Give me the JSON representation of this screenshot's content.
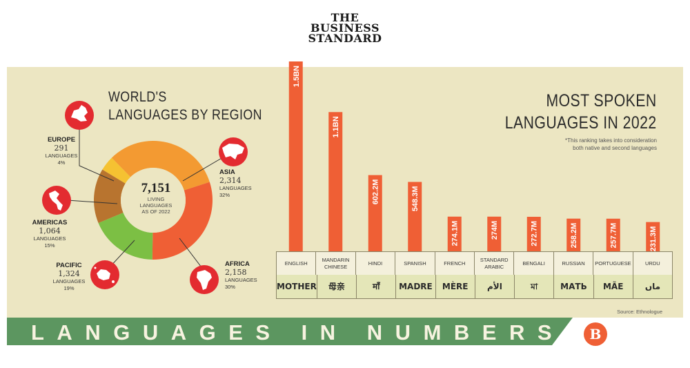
{
  "masthead": {
    "line1": "THE",
    "line2": "BUSINESS",
    "line3": "STANDARD"
  },
  "region_chart": {
    "title_line1": "WORLD'S",
    "title_line2": "LANGUAGES BY REGION",
    "center_total": "7,151",
    "center_text_1": "LIVING",
    "center_text_2": "LANGUAGES",
    "center_text_3": "AS OF 2022",
    "regions": [
      {
        "name": "EUROPE",
        "count": "291",
        "unit": "LANGUAGES",
        "pct": "4%"
      },
      {
        "name": "ASIA",
        "count": "2,314",
        "unit": "LANGUAGES",
        "pct": "32%"
      },
      {
        "name": "AMERICAS",
        "count": "1,064",
        "unit": "LANGUAGES",
        "pct": "15%"
      },
      {
        "name": "PACIFIC",
        "count": "1,324",
        "unit": "LANGUAGES",
        "pct": "19%"
      },
      {
        "name": "AFRICA",
        "count": "2,158",
        "unit": "LANGUAGES",
        "pct": "30%"
      }
    ]
  },
  "spoken": {
    "title_line1": "MOST SPOKEN",
    "title_line2": "LANGUAGES IN 2022",
    "note": "*This ranking takes into consideration both native and second languages",
    "source": "Source: Ethnologue"
  },
  "banner": "LANGUAGES IN NUMBERS",
  "logo": "B",
  "colors": {
    "europe": "#f5c232",
    "asia": "#f39a32",
    "africa": "#ef5f35",
    "pacific": "#7cbf44",
    "americas": "#b8742f",
    "bar": "#ef5f35",
    "icon": "#e32b30",
    "banner": "#5c9660",
    "panel": "#ece6c2"
  },
  "chart_data": [
    {
      "type": "pie",
      "title": "WORLD'S LANGUAGES BY REGION",
      "slices": [
        {
          "label": "EUROPE",
          "value": 291,
          "pct": 4
        },
        {
          "label": "ASIA",
          "value": 2314,
          "pct": 32
        },
        {
          "label": "AFRICA",
          "value": 2158,
          "pct": 30
        },
        {
          "label": "PACIFIC",
          "value": 1324,
          "pct": 19
        },
        {
          "label": "AMERICAS",
          "value": 1064,
          "pct": 15
        }
      ],
      "total": 7151
    },
    {
      "type": "bar",
      "title": "MOST SPOKEN LANGUAGES IN 2022",
      "categories": [
        "ENGLISH",
        "MANDARIN CHINESE",
        "HINDI",
        "SPANISH",
        "FRENCH",
        "STANDARD ARABIC",
        "BENGALI",
        "RUSSIAN",
        "PORTUGUESE",
        "URDU"
      ],
      "words": [
        "MOTHER",
        "母亲",
        "माँ",
        "MADRE",
        "MÈRE",
        "الأم",
        "মা",
        "МАТЬ",
        "MÃE",
        "ماں"
      ],
      "values": [
        1500,
        1100,
        602.2,
        548.3,
        274.1,
        274,
        272.7,
        258.2,
        257.7,
        231.3
      ],
      "labels": [
        "1.5BN",
        "1.1BN",
        "602.2M",
        "548.3M",
        "274.1M",
        "274M",
        "272.7M",
        "258.2M",
        "257.7M",
        "231.3M"
      ],
      "unit": "millions of speakers"
    }
  ]
}
